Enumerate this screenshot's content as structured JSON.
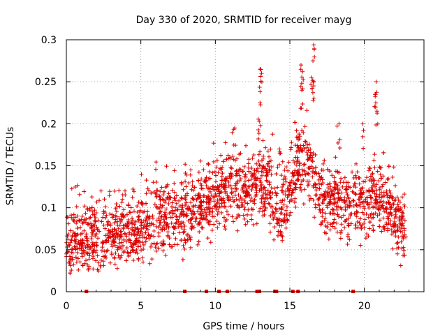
{
  "chart_data": {
    "type": "scatter",
    "title": "Day 330 of 2020, SRMTID for receiver mayg",
    "xlabel": "GPS time / hours",
    "ylabel": "SRMTID / TECUs",
    "xlim": [
      0,
      24
    ],
    "ylim": [
      0,
      0.3
    ],
    "x_ticks": [
      0,
      5,
      10,
      15,
      20
    ],
    "x_tick_labels": [
      "0",
      "5",
      "10",
      "15",
      "20"
    ],
    "y_ticks": [
      0,
      0.05,
      0.1,
      0.15,
      0.2,
      0.25,
      0.3
    ],
    "y_tick_labels": [
      "0",
      "0.05",
      "0.1",
      "0.15",
      "0.2",
      "0.25",
      "0.3"
    ],
    "grid": true,
    "marker": "+",
    "color": "#dd0000",
    "zero_value_times": [
      1.35,
      7.95,
      9.4,
      10.25,
      10.8,
      12.8,
      12.95,
      14.0,
      14.1,
      15.2,
      15.55,
      19.25
    ],
    "series": [
      {
        "name": "SRMTID",
        "baseline": [
          [
            0.0,
            0.058
          ],
          [
            1.0,
            0.06
          ],
          [
            2.0,
            0.062
          ],
          [
            3.0,
            0.066
          ],
          [
            4.0,
            0.072
          ],
          [
            5.0,
            0.074
          ],
          [
            6.0,
            0.082
          ],
          [
            7.0,
            0.09
          ],
          [
            8.0,
            0.095
          ],
          [
            9.0,
            0.1
          ],
          [
            10.0,
            0.11
          ],
          [
            11.0,
            0.125
          ],
          [
            12.0,
            0.118
          ],
          [
            13.0,
            0.128
          ],
          [
            13.5,
            0.135
          ],
          [
            14.0,
            0.1
          ],
          [
            14.5,
            0.09
          ],
          [
            15.0,
            0.12
          ],
          [
            15.5,
            0.15
          ],
          [
            16.0,
            0.16
          ],
          [
            16.5,
            0.145
          ],
          [
            17.0,
            0.11
          ],
          [
            18.0,
            0.11
          ],
          [
            19.0,
            0.1
          ],
          [
            20.0,
            0.105
          ],
          [
            21.0,
            0.115
          ],
          [
            22.0,
            0.085
          ],
          [
            22.8,
            0.07
          ]
        ],
        "peaks": [
          [
            13.0,
            0.265
          ],
          [
            13.1,
            0.26
          ],
          [
            13.0,
            0.225
          ],
          [
            15.75,
            0.27
          ],
          [
            15.85,
            0.262
          ],
          [
            15.8,
            0.24
          ],
          [
            16.6,
            0.294
          ],
          [
            16.55,
            0.275
          ],
          [
            16.45,
            0.255
          ],
          [
            16.6,
            0.245
          ],
          [
            20.8,
            0.25
          ],
          [
            20.75,
            0.235
          ],
          [
            20.85,
            0.215
          ],
          [
            19.9,
            0.2
          ],
          [
            18.3,
            0.2
          ],
          [
            11.3,
            0.195
          ],
          [
            14.3,
            0.17
          ]
        ]
      }
    ]
  }
}
